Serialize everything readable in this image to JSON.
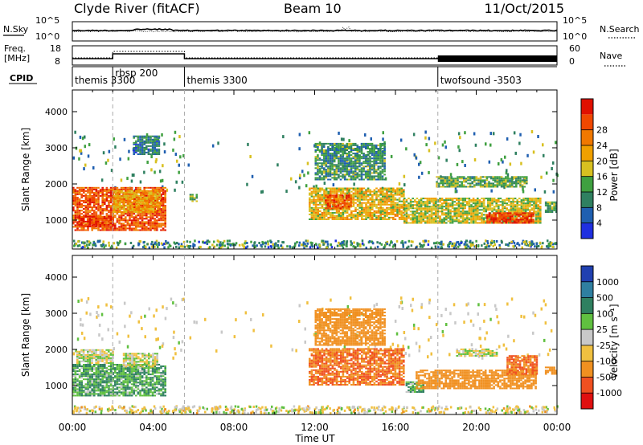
{
  "header": {
    "station": "Clyde River (fitACF)",
    "beam": "Beam 10",
    "date": "11/Oct/2015"
  },
  "time_axis": {
    "label": "Time UT",
    "ticks": [
      "00:00",
      "04:00",
      "08:00",
      "12:00",
      "16:00",
      "20:00",
      "00:00"
    ],
    "range_hours": [
      0,
      24
    ]
  },
  "nsky_panel": {
    "label": "N.Sky",
    "right_label": "N.Search",
    "left_ticks": [
      "10^5",
      "10^0"
    ],
    "right_ticks": [
      "10^5",
      "10^0"
    ]
  },
  "freq_panel": {
    "label_line1": "Freq.",
    "label_line2": "[MHz]",
    "right_label": "Nave",
    "left_ticks": [
      "18",
      "8"
    ],
    "right_ticks": [
      "60",
      "0"
    ]
  },
  "cpid_panel": {
    "label": "CPID",
    "segments": [
      {
        "name": "themis 3300",
        "start_hour": 0.0
      },
      {
        "name": "rbsp 200",
        "start_hour": 2.0
      },
      {
        "name": "themis 3300",
        "start_hour": 5.55
      },
      {
        "name": "twofsound -3503",
        "start_hour": 18.1
      }
    ]
  },
  "power_panel": {
    "ylabel": "Slant Range [km]",
    "yticks": [
      "1000",
      "2000",
      "3000",
      "4000"
    ],
    "colorbar_label": "Power [dB]",
    "colorbar_ticks": [
      "4",
      "8",
      "12",
      "16",
      "20",
      "24",
      "28"
    ],
    "colors": [
      "#1f2fe0",
      "#1f5fb0",
      "#2f8060",
      "#3fa040",
      "#d8c020",
      "#f0a000",
      "#f07800",
      "#f04800",
      "#e01000"
    ]
  },
  "velocity_panel": {
    "ylabel": "Slant Range [km]",
    "yticks": [
      "1000",
      "2000",
      "3000",
      "4000"
    ],
    "colorbar_label": "Velocity [m s⁻¹]",
    "colorbar_ticks": [
      "1000",
      "500",
      "100",
      "25",
      "-25",
      "-100",
      "-500",
      "-1000"
    ],
    "colors": [
      "#2040b0",
      "#2f7fa0",
      "#2f8060",
      "#60c040",
      "#c8c8c8",
      "#f0c040",
      "#f09020",
      "#f05020",
      "#e01010"
    ]
  },
  "chart_data": {
    "type": "heatmap",
    "x_unit": "hours UT",
    "y_unit": "km",
    "xlim": [
      0,
      24
    ],
    "ylim": [
      200,
      4600
    ],
    "power_blobs": [
      {
        "t0": 0.0,
        "t1": 4.6,
        "r0": 700,
        "r1": 1900,
        "dB": 26
      },
      {
        "t0": 0.3,
        "t1": 2.0,
        "r0": 800,
        "r1": 1100,
        "dB": 28
      },
      {
        "t0": 2.0,
        "t1": 4.3,
        "r0": 1200,
        "r1": 1800,
        "dB": 20
      },
      {
        "t0": 11.7,
        "t1": 16.4,
        "r0": 1000,
        "r1": 1900,
        "dB": 18
      },
      {
        "t0": 12.5,
        "t1": 13.8,
        "r0": 1300,
        "r1": 1700,
        "dB": 26
      },
      {
        "t0": 16.4,
        "t1": 23.2,
        "r0": 900,
        "r1": 1600,
        "dB": 16
      },
      {
        "t0": 20.5,
        "t1": 22.8,
        "r0": 900,
        "r1": 1200,
        "dB": 27
      },
      {
        "t0": 18.0,
        "t1": 22.5,
        "r0": 1900,
        "r1": 2200,
        "dB": 12
      },
      {
        "t0": 12.0,
        "t1": 15.5,
        "r0": 2100,
        "r1": 3100,
        "dB": 10
      },
      {
        "t0": 3.0,
        "t1": 4.3,
        "r0": 2800,
        "r1": 3300,
        "dB": 8
      },
      {
        "t0": 23.4,
        "t1": 24.0,
        "r0": 1200,
        "r1": 1500,
        "dB": 12
      },
      {
        "t0": 5.8,
        "t1": 6.2,
        "r0": 1500,
        "r1": 1700,
        "dB": 12
      }
    ],
    "velocity_blobs": [
      {
        "t0": 0.0,
        "t1": 4.6,
        "r0": 700,
        "r1": 1600,
        "v": 100
      },
      {
        "t0": 0.2,
        "t1": 2.0,
        "r0": 1600,
        "r1": 2000,
        "v": 0
      },
      {
        "t0": 2.5,
        "t1": 4.2,
        "r0": 1500,
        "r1": 1900,
        "v": 0
      },
      {
        "t0": 11.7,
        "t1": 16.4,
        "r0": 1000,
        "r1": 2000,
        "v": -500
      },
      {
        "t0": 16.5,
        "t1": 17.4,
        "r0": 800,
        "r1": 1100,
        "v": 100
      },
      {
        "t0": 17.0,
        "t1": 23.0,
        "r0": 900,
        "r1": 1400,
        "v": -200
      },
      {
        "t0": 21.5,
        "t1": 23.0,
        "r0": 1300,
        "r1": 1800,
        "v": -500
      },
      {
        "t0": 19.0,
        "t1": 21.0,
        "r0": 1800,
        "r1": 2000,
        "v": 0
      },
      {
        "t0": 23.4,
        "t1": 24.0,
        "r0": 1300,
        "r1": 1500,
        "v": -200
      },
      {
        "t0": 12.0,
        "t1": 15.5,
        "r0": 2100,
        "r1": 3100,
        "v": -300
      }
    ]
  }
}
